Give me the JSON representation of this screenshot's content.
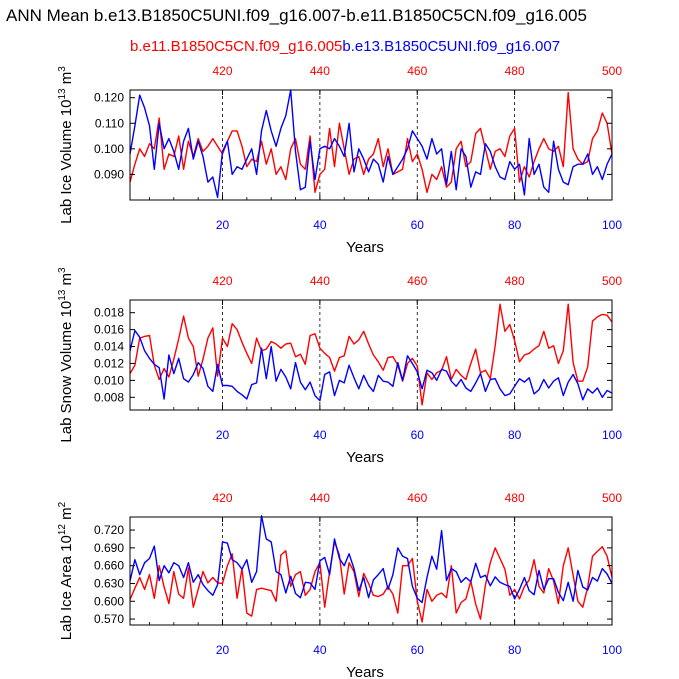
{
  "header": {
    "title": "ANN Mean b.e13.B1850C5UNI.f09_g16.007-b.e11.B1850C5CN.f09_g16.005",
    "legend_red": "b.e11.B1850C5CN.f09_g16.005",
    "legend_blue": "b.e13.B1850C5UNI.f09_g16.007"
  },
  "colors": {
    "red": "#ff0000",
    "blue": "#0000ff",
    "axis": "#000000",
    "grid": "#000000"
  },
  "chart_data": [
    {
      "type": "line",
      "xlabel": "Years",
      "ylabel": "Lab Ice Volume 10",
      "ylabel_exp": "13",
      "ylabel_unit": " m",
      "ylabel_unit_exp": "3",
      "bottom_ticks": [
        "20",
        "40",
        "60",
        "80",
        "100"
      ],
      "top_ticks": [
        "420",
        "440",
        "460",
        "480",
        "500"
      ],
      "y_ticks": [
        "0.090",
        "0.100",
        "0.110",
        "0.120"
      ],
      "ylim": [
        0.08,
        0.123
      ],
      "xlim": [
        1,
        100
      ],
      "series": [
        {
          "name": "b.e11.B1850C5CN.f09_g16.005",
          "color": "#ff0000",
          "values": [
            0.087,
            0.094,
            0.1,
            0.097,
            0.102,
            0.1,
            0.112,
            0.092,
            0.098,
            0.097,
            0.105,
            0.092,
            0.103,
            0.097,
            0.104,
            0.099,
            0.101,
            0.104,
            0.101,
            0.098,
            0.103,
            0.107,
            0.107,
            0.101,
            0.093,
            0.096,
            0.095,
            0.103,
            0.094,
            0.1,
            0.09,
            0.093,
            0.088,
            0.1,
            0.104,
            0.094,
            0.092,
            0.105,
            0.083,
            0.09,
            0.092,
            0.108,
            0.093,
            0.11,
            0.1,
            0.09,
            0.096,
            0.097,
            0.09,
            0.096,
            0.098,
            0.104,
            0.093,
            0.1,
            0.09,
            0.091,
            0.092,
            0.104,
            0.095,
            0.098,
            0.092,
            0.083,
            0.09,
            0.088,
            0.093,
            0.085,
            0.087,
            0.1,
            0.103,
            0.093,
            0.095,
            0.106,
            0.108,
            0.1,
            0.092,
            0.099,
            0.1,
            0.097,
            0.105,
            0.108,
            0.087,
            0.093,
            0.089,
            0.095,
            0.1,
            0.104,
            0.1,
            0.099,
            0.101,
            0.093,
            0.122,
            0.1,
            0.096,
            0.094,
            0.095,
            0.104,
            0.107,
            0.114,
            0.11,
            0.098
          ]
        },
        {
          "name": "b.e13.B1850C5UNI.f09_g16.007",
          "color": "#0000ff",
          "values": [
            0.098,
            0.109,
            0.121,
            0.116,
            0.109,
            0.092,
            0.11,
            0.1,
            0.104,
            0.099,
            0.092,
            0.103,
            0.108,
            0.096,
            0.103,
            0.097,
            0.087,
            0.089,
            0.081,
            0.099,
            0.103,
            0.09,
            0.093,
            0.092,
            0.096,
            0.1,
            0.09,
            0.107,
            0.115,
            0.107,
            0.101,
            0.108,
            0.113,
            0.123,
            0.099,
            0.084,
            0.085,
            0.103,
            0.088,
            0.1,
            0.101,
            0.1,
            0.104,
            0.101,
            0.097,
            0.11,
            0.091,
            0.1,
            0.096,
            0.091,
            0.096,
            0.094,
            0.087,
            0.097,
            0.09,
            0.093,
            0.096,
            0.1,
            0.107,
            0.104,
            0.101,
            0.096,
            0.104,
            0.098,
            0.1,
            0.086,
            0.099,
            0.084,
            0.1,
            0.097,
            0.085,
            0.091,
            0.09,
            0.102,
            0.099,
            0.093,
            0.089,
            0.088,
            0.095,
            0.092,
            0.094,
            0.082,
            0.104,
            0.09,
            0.094,
            0.085,
            0.083,
            0.103,
            0.092,
            0.087,
            0.086,
            0.093,
            0.094,
            0.094,
            0.098,
            0.09,
            0.093,
            0.088,
            0.094,
            0.098
          ]
        }
      ]
    },
    {
      "type": "line",
      "xlabel": "Years",
      "ylabel": "Lab Snow Volume 10",
      "ylabel_exp": "13",
      "ylabel_unit": " m",
      "ylabel_unit_exp": "3",
      "bottom_ticks": [
        "20",
        "40",
        "60",
        "80",
        "100"
      ],
      "top_ticks": [
        "420",
        "440",
        "460",
        "480",
        "500"
      ],
      "y_ticks": [
        "0.008",
        "0.010",
        "0.012",
        "0.014",
        "0.016",
        "0.018"
      ],
      "ylim": [
        0.0065,
        0.0195
      ],
      "xlim": [
        1,
        100
      ],
      "series": [
        {
          "name": "b.e11.B1850C5CN.f09_g16.005",
          "color": "#ff0000",
          "values": [
            0.0108,
            0.0118,
            0.015,
            0.0152,
            0.0153,
            0.0118,
            0.0101,
            0.0114,
            0.0104,
            0.0125,
            0.0149,
            0.0176,
            0.015,
            0.014,
            0.0105,
            0.0125,
            0.015,
            0.0162,
            0.0105,
            0.015,
            0.014,
            0.0167,
            0.016,
            0.0145,
            0.0132,
            0.012,
            0.015,
            0.0135,
            0.0137,
            0.0146,
            0.0143,
            0.0138,
            0.0143,
            0.0144,
            0.0128,
            0.0131,
            0.0119,
            0.0153,
            0.0155,
            0.0138,
            0.0132,
            0.0127,
            0.0111,
            0.0127,
            0.0129,
            0.0152,
            0.0143,
            0.0148,
            0.0158,
            0.0143,
            0.013,
            0.0122,
            0.0112,
            0.0127,
            0.0128,
            0.0118,
            0.0099,
            0.012,
            0.0126,
            0.0117,
            0.0071,
            0.0109,
            0.0101,
            0.0109,
            0.0112,
            0.0128,
            0.0101,
            0.0113,
            0.0106,
            0.0101,
            0.012,
            0.0137,
            0.0109,
            0.0112,
            0.0102,
            0.0141,
            0.019,
            0.0158,
            0.0166,
            0.0147,
            0.0122,
            0.013,
            0.0132,
            0.0137,
            0.0141,
            0.0158,
            0.0138,
            0.0141,
            0.012,
            0.0135,
            0.019,
            0.0121,
            0.0099,
            0.0099,
            0.0116,
            0.017,
            0.0175,
            0.0178,
            0.0177,
            0.0169
          ]
        },
        {
          "name": "b.e13.B1850C5UNI.f09_g16.007",
          "color": "#0000ff",
          "values": [
            0.0135,
            0.0159,
            0.0151,
            0.0135,
            0.0126,
            0.0119,
            0.0115,
            0.0078,
            0.013,
            0.0108,
            0.0126,
            0.0102,
            0.0098,
            0.0107,
            0.0121,
            0.0114,
            0.0093,
            0.0087,
            0.0119,
            0.0094,
            0.0094,
            0.0093,
            0.0087,
            0.0083,
            0.0078,
            0.0095,
            0.0097,
            0.0138,
            0.0102,
            0.014,
            0.0099,
            0.0113,
            0.0104,
            0.009,
            0.0121,
            0.0098,
            0.0089,
            0.0098,
            0.0082,
            0.0076,
            0.0107,
            0.011,
            0.0082,
            0.01,
            0.0097,
            0.0118,
            0.0103,
            0.009,
            0.0106,
            0.0094,
            0.0087,
            0.0106,
            0.0099,
            0.0098,
            0.0093,
            0.0121,
            0.01,
            0.0129,
            0.012,
            0.011,
            0.009,
            0.0112,
            0.0109,
            0.01,
            0.0113,
            0.0111,
            0.0099,
            0.0093,
            0.0101,
            0.0091,
            0.0087,
            0.0097,
            0.0108,
            0.0087,
            0.0101,
            0.0102,
            0.009,
            0.0082,
            0.0084,
            0.0093,
            0.0102,
            0.0098,
            0.0103,
            0.0084,
            0.0089,
            0.0101,
            0.0091,
            0.0099,
            0.0103,
            0.0082,
            0.0098,
            0.0107,
            0.0096,
            0.0077,
            0.009,
            0.0085,
            0.0091,
            0.008,
            0.0088,
            0.0085
          ]
        }
      ]
    },
    {
      "type": "line",
      "xlabel": "Years",
      "ylabel": "Lab Ice Area 10",
      "ylabel_exp": "12",
      "ylabel_unit": " m",
      "ylabel_unit_exp": "2",
      "bottom_ticks": [
        "20",
        "40",
        "60",
        "80",
        "100"
      ],
      "top_ticks": [
        "420",
        "440",
        "460",
        "480",
        "500"
      ],
      "y_ticks": [
        "0.570",
        "0.600",
        "0.630",
        "0.660",
        "0.690",
        "0.720"
      ],
      "ylim": [
        0.56,
        0.742
      ],
      "xlim": [
        1,
        100
      ],
      "series": [
        {
          "name": "b.e11.B1850C5CN.f09_g16.005",
          "color": "#ff0000",
          "values": [
            0.603,
            0.622,
            0.64,
            0.62,
            0.645,
            0.605,
            0.66,
            0.624,
            0.596,
            0.65,
            0.612,
            0.605,
            0.656,
            0.59,
            0.62,
            0.65,
            0.631,
            0.64,
            0.631,
            0.63,
            0.66,
            0.68,
            0.605,
            0.655,
            0.58,
            0.575,
            0.62,
            0.622,
            0.62,
            0.618,
            0.6,
            0.678,
            0.685,
            0.625,
            0.645,
            0.65,
            0.61,
            0.62,
            0.65,
            0.665,
            0.59,
            0.65,
            0.7,
            0.678,
            0.612,
            0.665,
            0.65,
            0.608,
            0.647,
            0.63,
            0.61,
            0.608,
            0.612,
            0.625,
            0.612,
            0.58,
            0.66,
            0.66,
            0.672,
            0.6,
            0.565,
            0.62,
            0.6,
            0.61,
            0.614,
            0.606,
            0.66,
            0.58,
            0.598,
            0.604,
            0.634,
            0.595,
            0.57,
            0.627,
            0.665,
            0.69,
            0.672,
            0.654,
            0.61,
            0.62,
            0.604,
            0.625,
            0.636,
            0.67,
            0.625,
            0.614,
            0.655,
            0.634,
            0.596,
            0.66,
            0.69,
            0.644,
            0.6,
            0.59,
            0.624,
            0.676,
            0.684,
            0.692,
            0.676,
            0.64
          ]
        },
        {
          "name": "b.e13.B1850C5UNI.f09_g16.007",
          "color": "#0000ff",
          "values": [
            0.634,
            0.67,
            0.645,
            0.665,
            0.672,
            0.693,
            0.635,
            0.66,
            0.648,
            0.665,
            0.66,
            0.64,
            0.665,
            0.632,
            0.645,
            0.628,
            0.618,
            0.61,
            0.628,
            0.7,
            0.698,
            0.67,
            0.665,
            0.654,
            0.67,
            0.632,
            0.65,
            0.744,
            0.705,
            0.7,
            0.65,
            0.645,
            0.614,
            0.642,
            0.613,
            0.606,
            0.632,
            0.631,
            0.62,
            0.668,
            0.674,
            0.645,
            0.705,
            0.672,
            0.66,
            0.68,
            0.655,
            0.618,
            0.64,
            0.606,
            0.636,
            0.645,
            0.655,
            0.62,
            0.645,
            0.69,
            0.676,
            0.672,
            0.625,
            0.605,
            0.598,
            0.64,
            0.676,
            0.654,
            0.719,
            0.635,
            0.655,
            0.65,
            0.632,
            0.64,
            0.633,
            0.664,
            0.64,
            0.644,
            0.626,
            0.641,
            0.632,
            0.628,
            0.625,
            0.604,
            0.62,
            0.64,
            0.618,
            0.611,
            0.652,
            0.62,
            0.638,
            0.638,
            0.615,
            0.601,
            0.632,
            0.6,
            0.652,
            0.624,
            0.619,
            0.64,
            0.634,
            0.655,
            0.646,
            0.63
          ]
        }
      ]
    }
  ]
}
